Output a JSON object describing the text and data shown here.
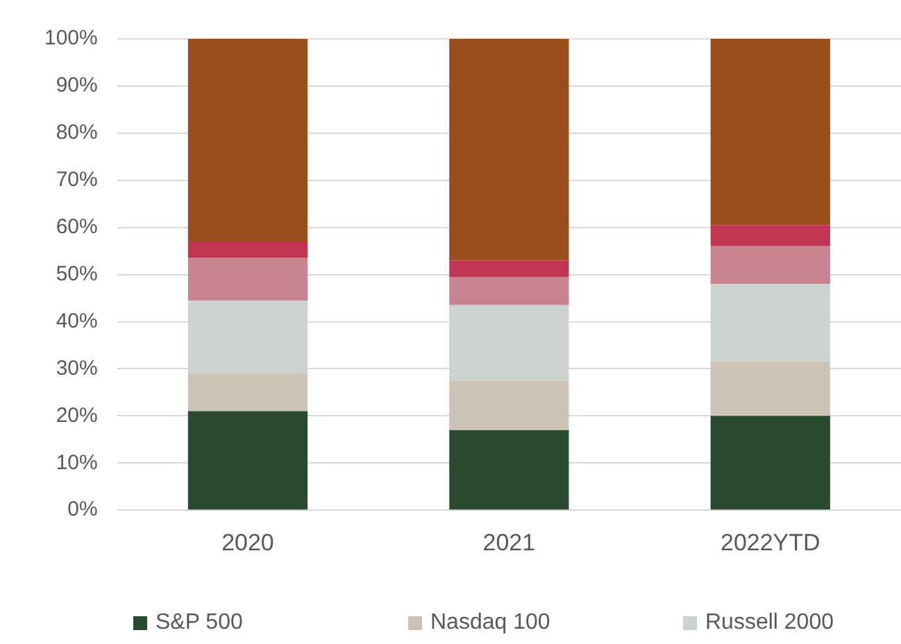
{
  "chart_data": {
    "type": "bar",
    "stacked": true,
    "categories": [
      "2020",
      "2021",
      "2022YTD"
    ],
    "series": [
      {
        "name": "S&P 500",
        "color": "#2b4a2f",
        "values": [
          21,
          17,
          20
        ]
      },
      {
        "name": "Nasdaq 100",
        "color": "#cdc3b9",
        "values": [
          8,
          10.5,
          11.5
        ]
      },
      {
        "name": "Russell 2000",
        "color": "#ccd3d1",
        "values": [
          15.5,
          16,
          16.5
        ]
      },
      {
        "color": "#c88491",
        "values": [
          9,
          6,
          8
        ]
      },
      {
        "color": "#bf3552",
        "values": [
          3.5,
          3.5,
          4.5
        ]
      },
      {
        "color": "#9a4e1e",
        "values": [
          43,
          47,
          39.5
        ]
      }
    ],
    "ylim": [
      0,
      100
    ],
    "yticks": [
      {
        "value": 0,
        "label": "0%"
      },
      {
        "value": 10,
        "label": "10%"
      },
      {
        "value": 20,
        "label": "20%"
      },
      {
        "value": 30,
        "label": "30%"
      },
      {
        "value": 40,
        "label": "40%"
      },
      {
        "value": 50,
        "label": "50%"
      },
      {
        "value": 60,
        "label": "60%"
      },
      {
        "value": 70,
        "label": "70%"
      },
      {
        "value": 80,
        "label": "80%"
      },
      {
        "value": 90,
        "label": "90%"
      },
      {
        "value": 100,
        "label": "100%"
      }
    ],
    "grid": "y",
    "legend": "bottom"
  }
}
